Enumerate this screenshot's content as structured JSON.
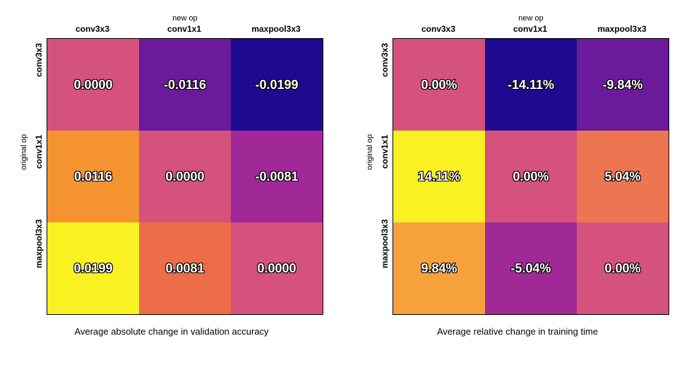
{
  "heatmaps": [
    {
      "x_title": "new op",
      "y_title": "original op",
      "x_labels": [
        "conv3x3",
        "conv1x1",
        "maxpool3x3"
      ],
      "y_labels": [
        "conv3x3",
        "conv1x1",
        "maxpool3x3"
      ],
      "caption": "Average absolute change in validation accuracy",
      "cells": [
        [
          {
            "text": "0.0000",
            "color": "#d5527c"
          },
          {
            "text": "-0.0116",
            "color": "#6a1a9a"
          },
          {
            "text": "-0.0199",
            "color": "#1e0a8f"
          }
        ],
        [
          {
            "text": "0.0116",
            "color": "#f59331"
          },
          {
            "text": "0.0000",
            "color": "#d5527c"
          },
          {
            "text": "-0.0081",
            "color": "#a02997"
          }
        ],
        [
          {
            "text": "0.0199",
            "color": "#f9f121"
          },
          {
            "text": "0.0081",
            "color": "#ec6d47"
          },
          {
            "text": "0.0000",
            "color": "#d5527c"
          }
        ]
      ]
    },
    {
      "x_title": "new op",
      "y_title": "original op",
      "x_labels": [
        "conv3x3",
        "conv1x1",
        "maxpool3x3"
      ],
      "y_labels": [
        "conv3x3",
        "conv1x1",
        "maxpool3x3"
      ],
      "caption": "Average relative change in training time",
      "cells": [
        [
          {
            "text": "0.00%",
            "color": "#d5527c"
          },
          {
            "text": "-14.11%",
            "color": "#1e0a8f"
          },
          {
            "text": "-9.84%",
            "color": "#6a1a9a"
          }
        ],
        [
          {
            "text": "14.11%",
            "color": "#f9f121"
          },
          {
            "text": "0.00%",
            "color": "#d5527c"
          },
          {
            "text": "5.04%",
            "color": "#ee7551"
          }
        ],
        [
          {
            "text": "9.84%",
            "color": "#f7a13c"
          },
          {
            "text": "-5.04%",
            "color": "#a02997"
          },
          {
            "text": "0.00%",
            "color": "#d5527c"
          }
        ]
      ]
    }
  ]
}
